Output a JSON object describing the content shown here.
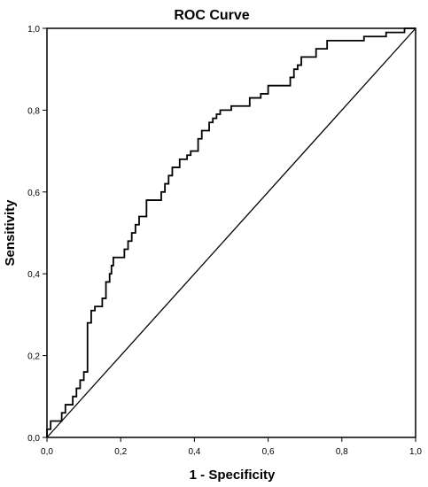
{
  "chart_data": {
    "type": "line",
    "title": "ROC Curve",
    "xlabel": "1 - Specificity",
    "ylabel": "Sensitivity",
    "xlim": [
      0,
      1
    ],
    "ylim": [
      0,
      1
    ],
    "x_tick_labels": [
      "0,0",
      "0,2",
      "0,4",
      "0,6",
      "0,8",
      "1,0"
    ],
    "y_tick_labels": [
      "0,0",
      "0,2",
      "0,4",
      "0,6",
      "0,8",
      "1,0"
    ],
    "x_tick_values": [
      0,
      0.2,
      0.4,
      0.6,
      0.8,
      1.0
    ],
    "y_tick_values": [
      0,
      0.2,
      0.4,
      0.6,
      0.8,
      1.0
    ],
    "grid": false,
    "legend": "none",
    "line_color": "#000000",
    "series": [
      {
        "x": [
          0,
          0,
          0.01,
          0.01,
          0.04,
          0.04,
          0.05,
          0.05,
          0.07,
          0.07,
          0.08,
          0.08,
          0.09,
          0.09,
          0.1,
          0.1,
          0.11,
          0.11,
          0.12,
          0.12,
          0.13,
          0.13,
          0.15,
          0.15,
          0.16,
          0.16,
          0.17,
          0.17,
          0.175,
          0.175,
          0.18,
          0.18,
          0.21,
          0.21,
          0.22,
          0.22,
          0.23,
          0.23,
          0.24,
          0.24,
          0.25,
          0.25,
          0.27,
          0.27,
          0.31,
          0.31,
          0.32,
          0.32,
          0.33,
          0.33,
          0.34,
          0.34,
          0.36,
          0.36,
          0.38,
          0.38,
          0.39,
          0.39,
          0.41,
          0.41,
          0.42,
          0.42,
          0.44,
          0.44,
          0.45,
          0.45,
          0.46,
          0.46,
          0.47,
          0.47,
          0.5,
          0.5,
          0.55,
          0.55,
          0.58,
          0.58,
          0.6,
          0.6,
          0.66,
          0.66,
          0.67,
          0.67,
          0.68,
          0.68,
          0.69,
          0.69,
          0.73,
          0.73,
          0.76,
          0.76,
          0.86,
          0.86,
          0.92,
          0.92,
          0.97,
          0.97,
          1
        ],
        "y": [
          0,
          0.02,
          0.02,
          0.04,
          0.04,
          0.06,
          0.06,
          0.08,
          0.08,
          0.1,
          0.1,
          0.12,
          0.12,
          0.14,
          0.14,
          0.16,
          0.16,
          0.28,
          0.28,
          0.31,
          0.31,
          0.32,
          0.32,
          0.34,
          0.34,
          0.38,
          0.38,
          0.4,
          0.4,
          0.42,
          0.42,
          0.44,
          0.44,
          0.46,
          0.46,
          0.48,
          0.48,
          0.5,
          0.5,
          0.52,
          0.52,
          0.54,
          0.54,
          0.58,
          0.58,
          0.6,
          0.6,
          0.62,
          0.62,
          0.64,
          0.64,
          0.66,
          0.66,
          0.68,
          0.68,
          0.69,
          0.69,
          0.7,
          0.7,
          0.73,
          0.73,
          0.75,
          0.75,
          0.77,
          0.77,
          0.78,
          0.78,
          0.79,
          0.79,
          0.8,
          0.8,
          0.81,
          0.81,
          0.83,
          0.83,
          0.84,
          0.84,
          0.86,
          0.86,
          0.88,
          0.88,
          0.9,
          0.9,
          0.91,
          0.91,
          0.93,
          0.93,
          0.95,
          0.95,
          0.97,
          0.97,
          0.98,
          0.98,
          0.99,
          0.99,
          1.0,
          1.0
        ]
      },
      {
        "x": [
          0,
          1
        ],
        "y": [
          0,
          1
        ]
      }
    ]
  }
}
